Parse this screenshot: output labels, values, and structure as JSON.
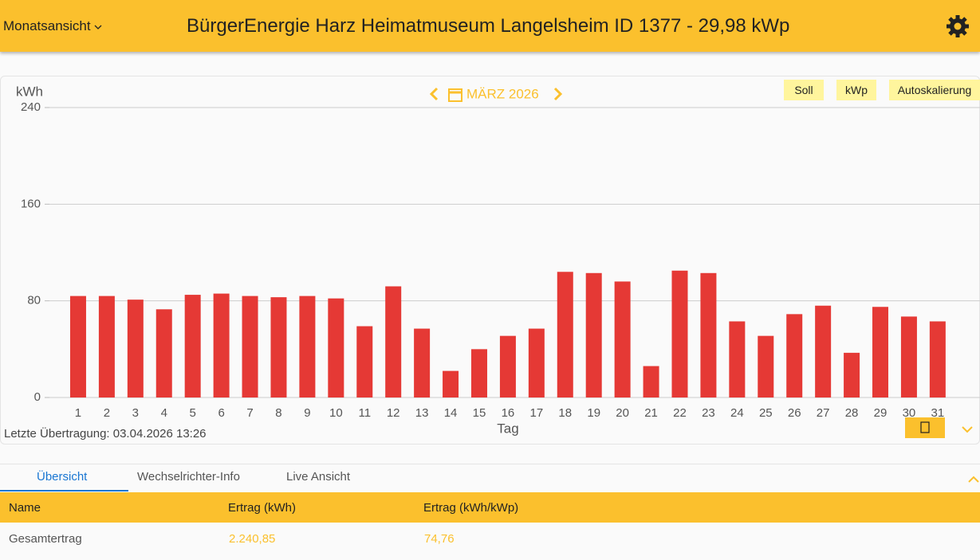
{
  "header": {
    "view_select": "Monatsansicht",
    "title": "BürgerEnergie Harz Heimatmuseum Langelsheim ID 1377 - 29,98 kWp"
  },
  "chart_data": {
    "type": "bar",
    "title": "MÄRZ 2026",
    "y_label": "kWh",
    "x_label": "Tag",
    "categories": [
      "1",
      "2",
      "3",
      "4",
      "5",
      "6",
      "7",
      "8",
      "9",
      "10",
      "11",
      "12",
      "13",
      "14",
      "15",
      "16",
      "17",
      "18",
      "19",
      "20",
      "21",
      "22",
      "23",
      "24",
      "25",
      "26",
      "27",
      "28",
      "29",
      "30",
      "31"
    ],
    "values": [
      84,
      84,
      81,
      73,
      85,
      86,
      84,
      83,
      84,
      82,
      59,
      92,
      57,
      22,
      40,
      51,
      57,
      104,
      103,
      96,
      26,
      105,
      103,
      63,
      51,
      69,
      76,
      37,
      75,
      67,
      63
    ],
    "color": "#e53935",
    "ylim": [
      0,
      240
    ],
    "yticks": [
      0,
      80,
      160,
      240
    ],
    "grid": true
  },
  "toolbar": {
    "buttons": [
      "Soll",
      "kWp",
      "Autoskalierung"
    ]
  },
  "status": "Letzte Übertragung: 03.04.2026 13:26",
  "tabs": [
    "Übersicht",
    "Wechselrichter-Info",
    "Live Ansicht"
  ],
  "table": {
    "columns": [
      "Name",
      "Ertrag (kWh)",
      "Ertrag (kWh/kWp)"
    ],
    "rows": [
      [
        "Gesamtertrag",
        "2.240,85",
        "74,76"
      ]
    ]
  }
}
